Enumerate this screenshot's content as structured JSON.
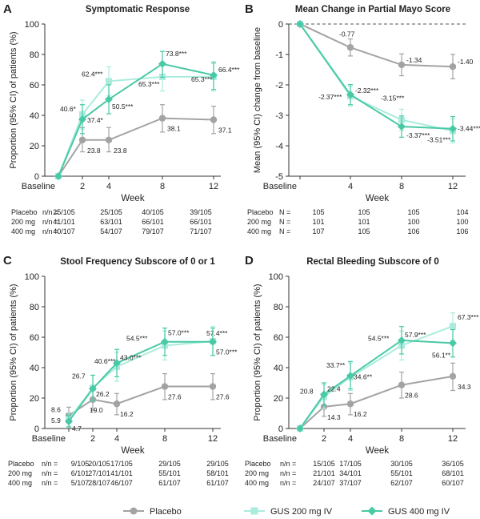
{
  "colors": {
    "placebo": "#a3a3a3",
    "gus200": "#a9ecdd",
    "gus400": "#49c9a6",
    "axis": "#333333",
    "text": "#222222"
  },
  "legend": {
    "items": [
      {
        "key": "placebo",
        "label": "Placebo"
      },
      {
        "key": "gus200",
        "label": "GUS 200 mg IV"
      },
      {
        "key": "gus400",
        "label": "GUS 400 mg IV"
      }
    ]
  },
  "chart_data": [
    {
      "panel_letter": "A",
      "type": "line",
      "title": "Symptomatic Response",
      "xlabel": "Week",
      "ylabel": "Proportion (95% CI) of patients (%)",
      "x_categories": [
        "Baseline",
        "2",
        "4",
        "8",
        "12"
      ],
      "y_ticks": [
        "0",
        "20",
        "40",
        "60",
        "80",
        "100"
      ],
      "ylim": [
        0,
        100
      ],
      "series": [
        {
          "key": "placebo",
          "name": "Placebo",
          "points": [
            {
              "x": 0,
              "y": 0,
              "lo": 0,
              "hi": 0,
              "label": ""
            },
            {
              "x": 2,
              "y": 23.8,
              "lo": 16,
              "hi": 32,
              "label": "23.8"
            },
            {
              "x": 4,
              "y": 23.8,
              "lo": 16,
              "hi": 32,
              "label": "23.8"
            },
            {
              "x": 8,
              "y": 38.1,
              "lo": 29,
              "hi": 47,
              "label": "38.1"
            },
            {
              "x": 12,
              "y": 37.1,
              "lo": 28,
              "hi": 46,
              "label": "37.1"
            }
          ]
        },
        {
          "key": "gus200",
          "name": "GUS 200 mg IV",
          "points": [
            {
              "x": 0,
              "y": 0,
              "lo": 0,
              "hi": 0,
              "label": ""
            },
            {
              "x": 2,
              "y": 40.6,
              "lo": 31,
              "hi": 50,
              "label": "40.6*"
            },
            {
              "x": 4,
              "y": 62.4,
              "lo": 53,
              "hi": 72,
              "label": "62.4***"
            },
            {
              "x": 8,
              "y": 65.3,
              "lo": 56,
              "hi": 74,
              "label": "65.3***"
            },
            {
              "x": 12,
              "y": 65.3,
              "lo": 56,
              "hi": 74,
              "label": "65.3***"
            }
          ]
        },
        {
          "key": "gus400",
          "name": "GUS 400 mg IV",
          "points": [
            {
              "x": 0,
              "y": 0,
              "lo": 0,
              "hi": 0,
              "label": ""
            },
            {
              "x": 2,
              "y": 37.4,
              "lo": 28,
              "hi": 47,
              "label": "37.4*"
            },
            {
              "x": 4,
              "y": 50.5,
              "lo": 41,
              "hi": 60,
              "label": "50.5***"
            },
            {
              "x": 8,
              "y": 73.8,
              "lo": 65,
              "hi": 82,
              "label": "73.8***"
            },
            {
              "x": 12,
              "y": 66.4,
              "lo": 57,
              "hi": 75,
              "label": "66.4***"
            }
          ]
        }
      ],
      "n_table": {
        "header": "n/n =",
        "rows": [
          {
            "name": "Placebo",
            "values": [
              "25/105",
              "25/105",
              "40/105",
              "39/105"
            ]
          },
          {
            "name": "200 mg",
            "values": [
              "41/101",
              "63/101",
              "66/101",
              "66/101"
            ]
          },
          {
            "name": "400 mg",
            "values": [
              "40/107",
              "54/107",
              "79/107",
              "71/107"
            ]
          }
        ]
      }
    },
    {
      "panel_letter": "B",
      "type": "line",
      "title": "Mean Change in Partial Mayo Score",
      "xlabel": "Week",
      "ylabel": "Mean (95% CI) change from baseline",
      "x_categories": [
        "Baseline",
        "4",
        "8",
        "12"
      ],
      "y_ticks": [
        "0",
        "-1",
        "-2",
        "-3",
        "-4",
        "-5"
      ],
      "ylim": [
        -5,
        0
      ],
      "series": [
        {
          "key": "placebo",
          "name": "Placebo",
          "points": [
            {
              "x": 0,
              "y": 0,
              "lo": 0,
              "hi": 0,
              "label": ""
            },
            {
              "x": 4,
              "y": -0.77,
              "lo": -1.05,
              "hi": -0.49,
              "label": "-0.77"
            },
            {
              "x": 8,
              "y": -1.34,
              "lo": -1.7,
              "hi": -0.98,
              "label": "-1.34"
            },
            {
              "x": 12,
              "y": -1.4,
              "lo": -1.8,
              "hi": -1.0,
              "label": "-1.40"
            }
          ]
        },
        {
          "key": "gus200",
          "name": "GUS 200 mg IV",
          "points": [
            {
              "x": 0,
              "y": 0,
              "lo": 0,
              "hi": 0,
              "label": ""
            },
            {
              "x": 4,
              "y": -2.37,
              "lo": -2.7,
              "hi": -2.04,
              "label": "-2.37***"
            },
            {
              "x": 8,
              "y": -3.15,
              "lo": -3.5,
              "hi": -2.8,
              "label": "-3.15***"
            },
            {
              "x": 12,
              "y": -3.51,
              "lo": -3.9,
              "hi": -3.12,
              "label": "-3.51***"
            }
          ]
        },
        {
          "key": "gus400",
          "name": "GUS 400 mg IV",
          "points": [
            {
              "x": 0,
              "y": 0,
              "lo": 0,
              "hi": 0,
              "label": ""
            },
            {
              "x": 4,
              "y": -2.32,
              "lo": -2.65,
              "hi": -1.99,
              "label": "-2.32***"
            },
            {
              "x": 8,
              "y": -3.37,
              "lo": -3.72,
              "hi": -3.02,
              "label": "-3.37***"
            },
            {
              "x": 12,
              "y": -3.44,
              "lo": -3.84,
              "hi": -3.04,
              "label": "-3.44***"
            }
          ]
        }
      ],
      "n_table": {
        "header": "N =",
        "rows": [
          {
            "name": "Placebo",
            "values": [
              "105",
              "105",
              "105",
              "104"
            ]
          },
          {
            "name": "200 mg",
            "values": [
              "101",
              "101",
              "100",
              "100"
            ]
          },
          {
            "name": "400 mg",
            "values": [
              "107",
              "105",
              "106",
              "106"
            ]
          }
        ]
      }
    },
    {
      "panel_letter": "C",
      "type": "line",
      "title": "Stool Frequency Subscore of 0 or 1",
      "xlabel": "Week",
      "ylabel": "Proportion (95% CI) of patients (%)",
      "x_categories": [
        "Baseline",
        "2",
        "4",
        "8",
        "12"
      ],
      "y_ticks": [
        "0",
        "20",
        "40",
        "60",
        "80",
        "100"
      ],
      "ylim": [
        0,
        100
      ],
      "series": [
        {
          "key": "placebo",
          "name": "Placebo",
          "points": [
            {
              "x": 0,
              "y": 8.6,
              "lo": 3.5,
              "hi": 14,
              "label": "8.6"
            },
            {
              "x": 2,
              "y": 19.0,
              "lo": 12,
              "hi": 27,
              "label": "19.0"
            },
            {
              "x": 4,
              "y": 16.2,
              "lo": 9,
              "hi": 23,
              "label": "16.2"
            },
            {
              "x": 8,
              "y": 27.6,
              "lo": 19,
              "hi": 36,
              "label": "27.6"
            },
            {
              "x": 12,
              "y": 27.6,
              "lo": 19,
              "hi": 36,
              "label": "27.6"
            }
          ]
        },
        {
          "key": "gus200",
          "name": "GUS 200 mg IV",
          "points": [
            {
              "x": 0,
              "y": 5.9,
              "lo": 1.5,
              "hi": 10.5,
              "label": "5.9"
            },
            {
              "x": 2,
              "y": 26.7,
              "lo": 18,
              "hi": 35,
              "label": "26.7"
            },
            {
              "x": 4,
              "y": 40.6,
              "lo": 31,
              "hi": 50,
              "label": "40.6***"
            },
            {
              "x": 8,
              "y": 54.5,
              "lo": 45,
              "hi": 64,
              "label": "54.5***"
            },
            {
              "x": 12,
              "y": 57.4,
              "lo": 48,
              "hi": 67,
              "label": "57.4***"
            }
          ]
        },
        {
          "key": "gus400",
          "name": "GUS 400 mg IV",
          "points": [
            {
              "x": 0,
              "y": 4.7,
              "lo": 1,
              "hi": 8.5,
              "label": "4.7"
            },
            {
              "x": 2,
              "y": 26.2,
              "lo": 18,
              "hi": 35,
              "label": "26.2"
            },
            {
              "x": 4,
              "y": 43.0,
              "lo": 34,
              "hi": 52,
              "label": "43.0***"
            },
            {
              "x": 8,
              "y": 57.0,
              "lo": 48,
              "hi": 66,
              "label": "57.0***"
            },
            {
              "x": 12,
              "y": 57.0,
              "lo": 48,
              "hi": 66,
              "label": "57.0***"
            }
          ]
        }
      ],
      "n_table": {
        "header": "n/n =",
        "rows": [
          {
            "name": "Placebo",
            "values": [
              "9/105",
              "20/105",
              "17/105",
              "29/105",
              "29/105"
            ]
          },
          {
            "name": "200 mg",
            "values": [
              "6/101",
              "27/101",
              "41/101",
              "55/101",
              "58/101"
            ]
          },
          {
            "name": "400 mg",
            "values": [
              "5/107",
              "28/107",
              "46/107",
              "61/107",
              "61/107"
            ]
          }
        ]
      }
    },
    {
      "panel_letter": "D",
      "type": "line",
      "title": "Rectal Bleeding Subscore of 0",
      "xlabel": "Week",
      "ylabel": "Proportion (95% CI) of patients (%)",
      "x_categories": [
        "Baseline",
        "2",
        "4",
        "8",
        "12"
      ],
      "y_ticks": [
        "0",
        "20",
        "40",
        "60",
        "80",
        "100"
      ],
      "ylim": [
        0,
        100
      ],
      "series": [
        {
          "key": "placebo",
          "name": "Placebo",
          "points": [
            {
              "x": 0,
              "y": 0,
              "lo": 0,
              "hi": 0,
              "label": ""
            },
            {
              "x": 2,
              "y": 14.3,
              "lo": 8,
              "hi": 21,
              "label": "14.3"
            },
            {
              "x": 4,
              "y": 16.2,
              "lo": 9,
              "hi": 23,
              "label": "16.2"
            },
            {
              "x": 8,
              "y": 28.6,
              "lo": 20,
              "hi": 37,
              "label": "28.6"
            },
            {
              "x": 12,
              "y": 34.3,
              "lo": 25,
              "hi": 43,
              "label": "34.3"
            }
          ]
        },
        {
          "key": "gus200",
          "name": "GUS 200 mg IV",
          "points": [
            {
              "x": 0,
              "y": 0,
              "lo": 0,
              "hi": 0,
              "label": ""
            },
            {
              "x": 2,
              "y": 20.8,
              "lo": 13,
              "hi": 29,
              "label": "20.8"
            },
            {
              "x": 4,
              "y": 33.7,
              "lo": 25,
              "hi": 43,
              "label": "33.7**"
            },
            {
              "x": 8,
              "y": 54.5,
              "lo": 45,
              "hi": 64,
              "label": "54.5***"
            },
            {
              "x": 12,
              "y": 67.3,
              "lo": 58,
              "hi": 76,
              "label": "67.3***"
            }
          ]
        },
        {
          "key": "gus400",
          "name": "GUS 400 mg IV",
          "points": [
            {
              "x": 0,
              "y": 0,
              "lo": 0,
              "hi": 0,
              "label": ""
            },
            {
              "x": 2,
              "y": 22.4,
              "lo": 15,
              "hi": 30,
              "label": "22.4"
            },
            {
              "x": 4,
              "y": 34.6,
              "lo": 26,
              "hi": 44,
              "label": "34.6**"
            },
            {
              "x": 8,
              "y": 57.9,
              "lo": 49,
              "hi": 67,
              "label": "57.9***"
            },
            {
              "x": 12,
              "y": 56.1,
              "lo": 47,
              "hi": 65,
              "label": "56.1**"
            }
          ]
        }
      ],
      "n_table": {
        "header": "n/n =",
        "rows": [
          {
            "name": "Placebo",
            "values": [
              "15/105",
              "17/105",
              "30/105",
              "36/105"
            ]
          },
          {
            "name": "200 mg",
            "values": [
              "21/101",
              "34/101",
              "55/101",
              "68/101"
            ]
          },
          {
            "name": "400 mg",
            "values": [
              "24/107",
              "37/107",
              "62/107",
              "60/107"
            ]
          }
        ]
      }
    }
  ]
}
